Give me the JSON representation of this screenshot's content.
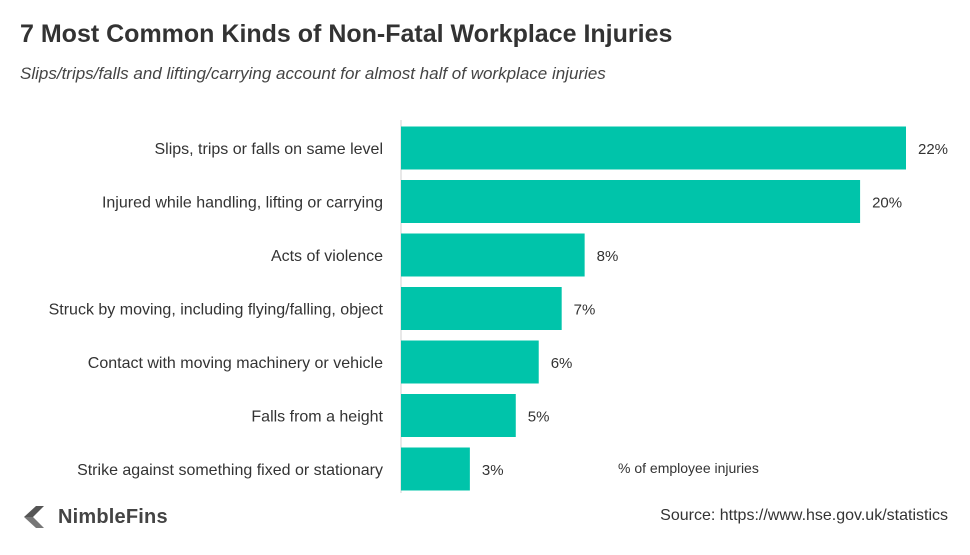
{
  "header": {
    "title": "7 Most Common Kinds of Non-Fatal Workplace Injuries",
    "subtitle": "Slips/trips/falls and lifting/carrying account for almost half of workplace injuries"
  },
  "footer": {
    "brand": "NimbleFins",
    "source": "Source: https://www.hse.gov.uk/statistics"
  },
  "chart_data": {
    "type": "bar",
    "orientation": "horizontal",
    "title": "7 Most Common Kinds of Non-Fatal Workplace Injuries",
    "subtitle": "Slips/trips/falls and lifting/carrying account for almost half of workplace injuries",
    "categories": [
      "Slips, trips or falls on same level",
      "Injured while handling, lifting or carrying",
      "Acts of violence",
      "Struck by moving, including flying/falling, object",
      "Contact with moving machinery or vehicle",
      "Falls from a height",
      "Strike against something fixed or stationary"
    ],
    "values": [
      22,
      20,
      8,
      7,
      6,
      5,
      3
    ],
    "value_labels": [
      "22%",
      "20%",
      "8%",
      "7%",
      "6%",
      "5%",
      "3%"
    ],
    "xlabel": "% of employee injuries",
    "ylabel": "",
    "xlim": [
      0,
      22
    ],
    "grid": false,
    "bar_color": "#00c4aa"
  }
}
